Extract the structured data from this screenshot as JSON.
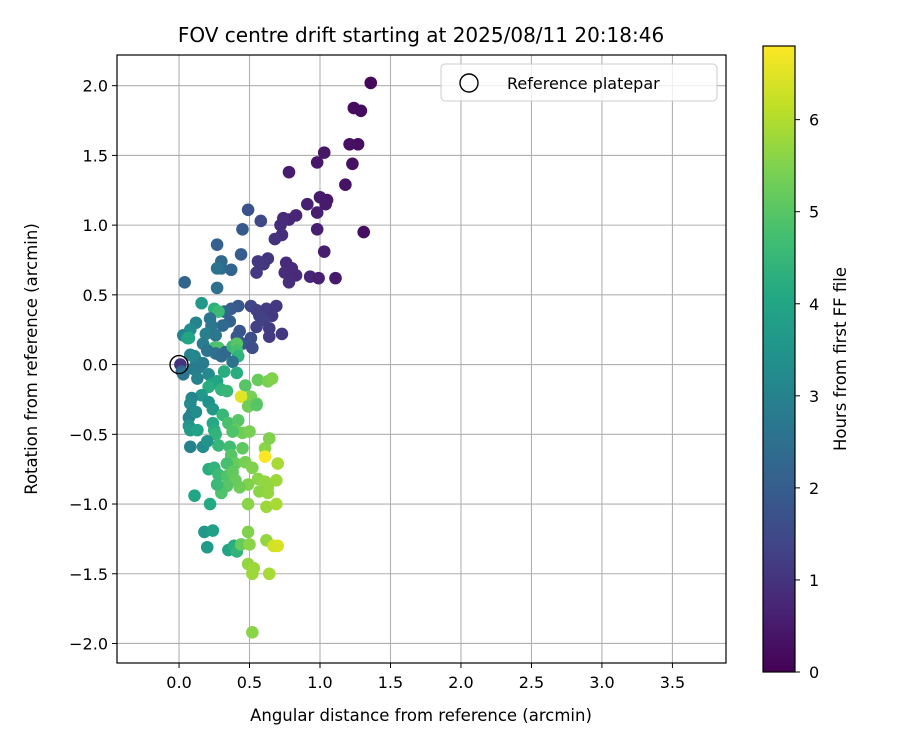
{
  "chart_data": {
    "type": "scatter",
    "title": "FOV centre drift starting at 2025/08/11 20:18:46",
    "xlabel": "Angular distance from reference (arcmin)",
    "ylabel": "Rotation from reference (arcmin)",
    "xlim": [
      -0.44,
      3.88
    ],
    "ylim": [
      -2.14,
      2.22
    ],
    "xticks": [
      0.0,
      0.5,
      1.0,
      1.5,
      2.0,
      2.5,
      3.0,
      3.5
    ],
    "xtick_labels": [
      "0.0",
      "0.5",
      "1.0",
      "1.5",
      "2.0",
      "2.5",
      "3.0",
      "3.5"
    ],
    "yticks": [
      -2.0,
      -1.5,
      -1.0,
      -0.5,
      0.0,
      0.5,
      1.0,
      1.5,
      2.0
    ],
    "ytick_labels": [
      "−2.0",
      "−1.5",
      "−1.0",
      "−0.5",
      "0.0",
      "0.5",
      "1.0",
      "1.5",
      "2.0"
    ],
    "grid": true,
    "legend": {
      "position": "top-right",
      "entries": [
        "Reference platepar"
      ]
    },
    "reference_point": {
      "x": 0.0,
      "y": 0.0,
      "marker": "open-circle"
    },
    "colorbar": {
      "label": "Hours from first FF file",
      "colormap": "viridis",
      "range": [
        0,
        6.8
      ],
      "ticks": [
        0,
        1,
        2,
        3,
        4,
        5,
        6
      ],
      "tick_labels": [
        "0",
        "1",
        "2",
        "3",
        "4",
        "5",
        "6"
      ]
    },
    "points": [
      {
        "x": 1.36,
        "y": 2.02,
        "c": 0.15
      },
      {
        "x": 1.24,
        "y": 1.84,
        "c": 0.2
      },
      {
        "x": 1.29,
        "y": 1.82,
        "c": 0.2
      },
      {
        "x": 1.27,
        "y": 1.58,
        "c": 0.25
      },
      {
        "x": 1.21,
        "y": 1.58,
        "c": 0.3
      },
      {
        "x": 1.23,
        "y": 1.44,
        "c": 0.3
      },
      {
        "x": 1.03,
        "y": 1.52,
        "c": 0.4
      },
      {
        "x": 0.98,
        "y": 1.45,
        "c": 0.45
      },
      {
        "x": 0.78,
        "y": 1.38,
        "c": 0.55
      },
      {
        "x": 1.18,
        "y": 1.29,
        "c": 0.35
      },
      {
        "x": 1.0,
        "y": 1.2,
        "c": 0.5
      },
      {
        "x": 1.05,
        "y": 1.18,
        "c": 0.45
      },
      {
        "x": 1.04,
        "y": 1.15,
        "c": 0.5
      },
      {
        "x": 0.91,
        "y": 1.15,
        "c": 0.6
      },
      {
        "x": 0.98,
        "y": 1.09,
        "c": 0.55
      },
      {
        "x": 0.83,
        "y": 1.07,
        "c": 0.7
      },
      {
        "x": 0.78,
        "y": 1.04,
        "c": 0.75
      },
      {
        "x": 0.74,
        "y": 1.05,
        "c": 0.8
      },
      {
        "x": 0.72,
        "y": 1.0,
        "c": 0.85
      },
      {
        "x": 0.98,
        "y": 0.97,
        "c": 0.6
      },
      {
        "x": 1.31,
        "y": 0.95,
        "c": 0.25
      },
      {
        "x": 0.73,
        "y": 0.93,
        "c": 0.9
      },
      {
        "x": 0.68,
        "y": 0.9,
        "c": 0.95
      },
      {
        "x": 1.03,
        "y": 0.81,
        "c": 0.55
      },
      {
        "x": 0.76,
        "y": 0.73,
        "c": 0.85
      },
      {
        "x": 0.8,
        "y": 0.69,
        "c": 0.85
      },
      {
        "x": 0.75,
        "y": 0.66,
        "c": 0.9
      },
      {
        "x": 0.8,
        "y": 0.65,
        "c": 0.85
      },
      {
        "x": 0.83,
        "y": 0.64,
        "c": 0.8
      },
      {
        "x": 0.93,
        "y": 0.63,
        "c": 0.7
      },
      {
        "x": 0.99,
        "y": 0.62,
        "c": 0.6
      },
      {
        "x": 1.11,
        "y": 0.62,
        "c": 0.5
      },
      {
        "x": 0.78,
        "y": 0.59,
        "c": 0.9
      },
      {
        "x": 0.63,
        "y": 0.76,
        "c": 1.05
      },
      {
        "x": 0.56,
        "y": 0.74,
        "c": 1.1
      },
      {
        "x": 0.6,
        "y": 0.72,
        "c": 1.1
      },
      {
        "x": 0.55,
        "y": 0.66,
        "c": 1.15
      },
      {
        "x": 0.58,
        "y": 1.03,
        "c": 1.45
      },
      {
        "x": 0.49,
        "y": 1.11,
        "c": 1.7
      },
      {
        "x": 0.45,
        "y": 0.97,
        "c": 1.9
      },
      {
        "x": 0.44,
        "y": 0.79,
        "c": 2.0
      },
      {
        "x": 0.27,
        "y": 0.86,
        "c": 2.1
      },
      {
        "x": 0.3,
        "y": 0.74,
        "c": 2.3
      },
      {
        "x": 0.3,
        "y": 0.69,
        "c": 2.4
      },
      {
        "x": 0.37,
        "y": 0.68,
        "c": 2.2
      },
      {
        "x": 0.27,
        "y": 0.69,
        "c": 2.6
      },
      {
        "x": 0.04,
        "y": 0.59,
        "c": 2.2
      },
      {
        "x": 0.27,
        "y": 0.55,
        "c": 2.5
      },
      {
        "x": 0.51,
        "y": 0.42,
        "c": 1.4
      },
      {
        "x": 0.55,
        "y": 0.39,
        "c": 1.3
      },
      {
        "x": 0.62,
        "y": 0.4,
        "c": 1.2
      },
      {
        "x": 0.69,
        "y": 0.42,
        "c": 1.1
      },
      {
        "x": 0.66,
        "y": 0.35,
        "c": 1.15
      },
      {
        "x": 0.57,
        "y": 0.35,
        "c": 1.25
      },
      {
        "x": 0.6,
        "y": 0.32,
        "c": 1.3
      },
      {
        "x": 0.55,
        "y": 0.27,
        "c": 1.3
      },
      {
        "x": 0.64,
        "y": 0.26,
        "c": 1.2
      },
      {
        "x": 0.73,
        "y": 0.22,
        "c": 1.1
      },
      {
        "x": 0.64,
        "y": 0.2,
        "c": 1.2
      },
      {
        "x": 0.42,
        "y": 0.42,
        "c": 1.9
      },
      {
        "x": 0.37,
        "y": 0.4,
        "c": 2.0
      },
      {
        "x": 0.32,
        "y": 0.38,
        "c": 2.2
      },
      {
        "x": 0.36,
        "y": 0.31,
        "c": 2.1
      },
      {
        "x": 0.31,
        "y": 0.28,
        "c": 2.3
      },
      {
        "x": 0.43,
        "y": 0.24,
        "c": 1.8
      },
      {
        "x": 0.41,
        "y": 0.2,
        "c": 1.9
      },
      {
        "x": 0.51,
        "y": 0.19,
        "c": 1.6
      },
      {
        "x": 0.45,
        "y": 0.15,
        "c": 1.8
      },
      {
        "x": 0.52,
        "y": 0.12,
        "c": 1.6
      },
      {
        "x": 0.25,
        "y": 0.4,
        "c": 4.3
      },
      {
        "x": 0.28,
        "y": 0.38,
        "c": 4.6
      },
      {
        "x": 0.22,
        "y": 0.33,
        "c": 2.6
      },
      {
        "x": 0.23,
        "y": 0.28,
        "c": 2.7
      },
      {
        "x": 0.12,
        "y": 0.3,
        "c": 3.0
      },
      {
        "x": 0.16,
        "y": 0.44,
        "c": 3.6
      },
      {
        "x": 0.08,
        "y": 0.25,
        "c": 3.2
      },
      {
        "x": 0.06,
        "y": 0.22,
        "c": 3.4
      },
      {
        "x": 0.03,
        "y": 0.21,
        "c": 3.0
      },
      {
        "x": 0.06,
        "y": 0.19,
        "c": 3.8
      },
      {
        "x": 0.07,
        "y": 0.19,
        "c": 4.0
      },
      {
        "x": 0.19,
        "y": 0.22,
        "c": 2.9
      },
      {
        "x": 0.26,
        "y": 0.21,
        "c": 2.7
      },
      {
        "x": 0.17,
        "y": 0.15,
        "c": 2.8
      },
      {
        "x": 0.25,
        "y": 0.12,
        "c": 4.8
      },
      {
        "x": 0.28,
        "y": 0.12,
        "c": 4.9
      },
      {
        "x": 0.2,
        "y": 0.1,
        "c": 2.6
      },
      {
        "x": 0.26,
        "y": 0.08,
        "c": 2.5
      },
      {
        "x": 0.3,
        "y": 0.06,
        "c": 2.4
      },
      {
        "x": 0.33,
        "y": 0.09,
        "c": 2.3
      },
      {
        "x": 0.38,
        "y": 0.13,
        "c": 4.6
      },
      {
        "x": 0.41,
        "y": 0.15,
        "c": 5.0
      },
      {
        "x": 0.41,
        "y": 0.1,
        "c": 4.8
      },
      {
        "x": 0.42,
        "y": 0.06,
        "c": 4.4
      },
      {
        "x": 0.38,
        "y": 0.02,
        "c": 2.6
      },
      {
        "x": 0.08,
        "y": 0.07,
        "c": 3.0
      },
      {
        "x": 0.12,
        "y": 0.03,
        "c": 3.2
      },
      {
        "x": 0.11,
        "y": 0.06,
        "c": 3.1
      },
      {
        "x": 0.14,
        "y": -0.02,
        "c": 2.9
      },
      {
        "x": 0.17,
        "y": 0.01,
        "c": 2.8
      },
      {
        "x": 0.01,
        "y": 0.0,
        "c": 1.0
      },
      {
        "x": 0.02,
        "y": -0.05,
        "c": 2.2
      },
      {
        "x": 0.03,
        "y": -0.07,
        "c": 2.6
      },
      {
        "x": 0.1,
        "y": -0.03,
        "c": 2.8
      },
      {
        "x": 0.13,
        "y": -0.1,
        "c": 3.0
      },
      {
        "x": 0.21,
        "y": -0.07,
        "c": 3.2
      },
      {
        "x": 0.23,
        "y": -0.14,
        "c": 3.8
      },
      {
        "x": 0.27,
        "y": -0.12,
        "c": 4.0
      },
      {
        "x": 0.3,
        "y": -0.18,
        "c": 4.4
      },
      {
        "x": 0.41,
        "y": -0.06,
        "c": 4.2
      },
      {
        "x": 0.32,
        "y": -0.05,
        "c": 4.2
      },
      {
        "x": 0.47,
        "y": -0.15,
        "c": 5.0
      },
      {
        "x": 0.56,
        "y": -0.11,
        "c": 5.2
      },
      {
        "x": 0.63,
        "y": -0.12,
        "c": 5.4
      },
      {
        "x": 0.66,
        "y": -0.1,
        "c": 5.5
      },
      {
        "x": 0.51,
        "y": -0.23,
        "c": 5.4
      },
      {
        "x": 0.44,
        "y": -0.23,
        "c": 6.5
      },
      {
        "x": 0.49,
        "y": -0.3,
        "c": 5.3
      },
      {
        "x": 0.55,
        "y": -0.28,
        "c": 5.2
      },
      {
        "x": 0.55,
        "y": -0.29,
        "c": 5.0
      },
      {
        "x": 0.34,
        "y": -0.19,
        "c": 4.5
      },
      {
        "x": 0.21,
        "y": -0.16,
        "c": 4.2
      },
      {
        "x": 0.16,
        "y": -0.22,
        "c": 3.6
      },
      {
        "x": 0.21,
        "y": -0.27,
        "c": 3.4
      },
      {
        "x": 0.24,
        "y": -0.32,
        "c": 3.6
      },
      {
        "x": 0.09,
        "y": -0.24,
        "c": 3.1
      },
      {
        "x": 0.08,
        "y": -0.28,
        "c": 3.2
      },
      {
        "x": 0.09,
        "y": -0.35,
        "c": 3.0
      },
      {
        "x": 0.07,
        "y": -0.38,
        "c": 3.0
      },
      {
        "x": 0.12,
        "y": -0.34,
        "c": 3.3
      },
      {
        "x": 0.07,
        "y": -0.44,
        "c": 3.5
      },
      {
        "x": 0.08,
        "y": -0.47,
        "c": 3.7
      },
      {
        "x": 0.13,
        "y": -0.47,
        "c": 3.9
      },
      {
        "x": 0.24,
        "y": -0.42,
        "c": 4.1
      },
      {
        "x": 0.25,
        "y": -0.47,
        "c": 4.2
      },
      {
        "x": 0.26,
        "y": -0.5,
        "c": 4.4
      },
      {
        "x": 0.31,
        "y": -0.36,
        "c": 4.5
      },
      {
        "x": 0.35,
        "y": -0.42,
        "c": 4.8
      },
      {
        "x": 0.42,
        "y": -0.4,
        "c": 5.0
      },
      {
        "x": 0.4,
        "y": -0.47,
        "c": 5.2
      },
      {
        "x": 0.45,
        "y": -0.49,
        "c": 5.3
      },
      {
        "x": 0.5,
        "y": -0.48,
        "c": 5.4
      },
      {
        "x": 0.38,
        "y": -0.48,
        "c": 4.9
      },
      {
        "x": 0.28,
        "y": -0.58,
        "c": 4.5
      },
      {
        "x": 0.36,
        "y": -0.59,
        "c": 4.7
      },
      {
        "x": 0.45,
        "y": -0.6,
        "c": 5.1
      },
      {
        "x": 0.08,
        "y": -0.59,
        "c": 3.0
      },
      {
        "x": 0.17,
        "y": -0.59,
        "c": 3.3
      },
      {
        "x": 0.2,
        "y": -0.55,
        "c": 3.5
      },
      {
        "x": 0.61,
        "y": -0.6,
        "c": 5.6
      },
      {
        "x": 0.64,
        "y": -0.53,
        "c": 5.5
      },
      {
        "x": 0.61,
        "y": -0.66,
        "c": 6.8
      },
      {
        "x": 0.7,
        "y": -0.71,
        "c": 5.9
      },
      {
        "x": 0.37,
        "y": -0.65,
        "c": 5.0
      },
      {
        "x": 0.4,
        "y": -0.71,
        "c": 5.2
      },
      {
        "x": 0.34,
        "y": -0.71,
        "c": 4.8
      },
      {
        "x": 0.21,
        "y": -0.75,
        "c": 4.2
      },
      {
        "x": 0.25,
        "y": -0.74,
        "c": 4.4
      },
      {
        "x": 0.28,
        "y": -0.79,
        "c": 4.6
      },
      {
        "x": 0.34,
        "y": -0.8,
        "c": 4.9
      },
      {
        "x": 0.38,
        "y": -0.77,
        "c": 5.1
      },
      {
        "x": 0.47,
        "y": -0.7,
        "c": 5.4
      },
      {
        "x": 0.52,
        "y": -0.74,
        "c": 5.5
      },
      {
        "x": 0.56,
        "y": -0.82,
        "c": 5.6
      },
      {
        "x": 0.61,
        "y": -0.84,
        "c": 5.7
      },
      {
        "x": 0.69,
        "y": -0.83,
        "c": 5.8
      },
      {
        "x": 0.63,
        "y": -0.88,
        "c": 5.7
      },
      {
        "x": 0.57,
        "y": -0.91,
        "c": 5.6
      },
      {
        "x": 0.49,
        "y": -0.86,
        "c": 5.5
      },
      {
        "x": 0.43,
        "y": -0.88,
        "c": 5.3
      },
      {
        "x": 0.4,
        "y": -0.83,
        "c": 5.2
      },
      {
        "x": 0.34,
        "y": -0.87,
        "c": 5.0
      },
      {
        "x": 0.3,
        "y": -0.92,
        "c": 4.9
      },
      {
        "x": 0.27,
        "y": -0.86,
        "c": 4.6
      },
      {
        "x": 0.11,
        "y": -0.94,
        "c": 4.0
      },
      {
        "x": 0.22,
        "y": -1.0,
        "c": 4.1
      },
      {
        "x": 0.49,
        "y": -1.0,
        "c": 5.6
      },
      {
        "x": 0.62,
        "y": -1.02,
        "c": 5.8
      },
      {
        "x": 0.69,
        "y": -1.0,
        "c": 5.9
      },
      {
        "x": 0.63,
        "y": -0.92,
        "c": 5.7
      },
      {
        "x": 0.18,
        "y": -1.2,
        "c": 3.6
      },
      {
        "x": 0.24,
        "y": -1.19,
        "c": 3.8
      },
      {
        "x": 0.2,
        "y": -1.31,
        "c": 3.7
      },
      {
        "x": 0.35,
        "y": -1.33,
        "c": 4.0
      },
      {
        "x": 0.39,
        "y": -1.3,
        "c": 4.2
      },
      {
        "x": 0.41,
        "y": -1.34,
        "c": 4.4
      },
      {
        "x": 0.44,
        "y": -1.29,
        "c": 5.2
      },
      {
        "x": 0.49,
        "y": -1.2,
        "c": 5.5
      },
      {
        "x": 0.5,
        "y": -1.29,
        "c": 5.6
      },
      {
        "x": 0.62,
        "y": -1.26,
        "c": 5.7
      },
      {
        "x": 0.67,
        "y": -1.3,
        "c": 6.3
      },
      {
        "x": 0.7,
        "y": -1.3,
        "c": 6.4
      },
      {
        "x": 0.49,
        "y": -1.43,
        "c": 5.7
      },
      {
        "x": 0.53,
        "y": -1.46,
        "c": 5.8
      },
      {
        "x": 0.52,
        "y": -1.5,
        "c": 5.8
      },
      {
        "x": 0.64,
        "y": -1.5,
        "c": 5.9
      },
      {
        "x": 0.52,
        "y": -1.92,
        "c": 5.6
      }
    ]
  }
}
